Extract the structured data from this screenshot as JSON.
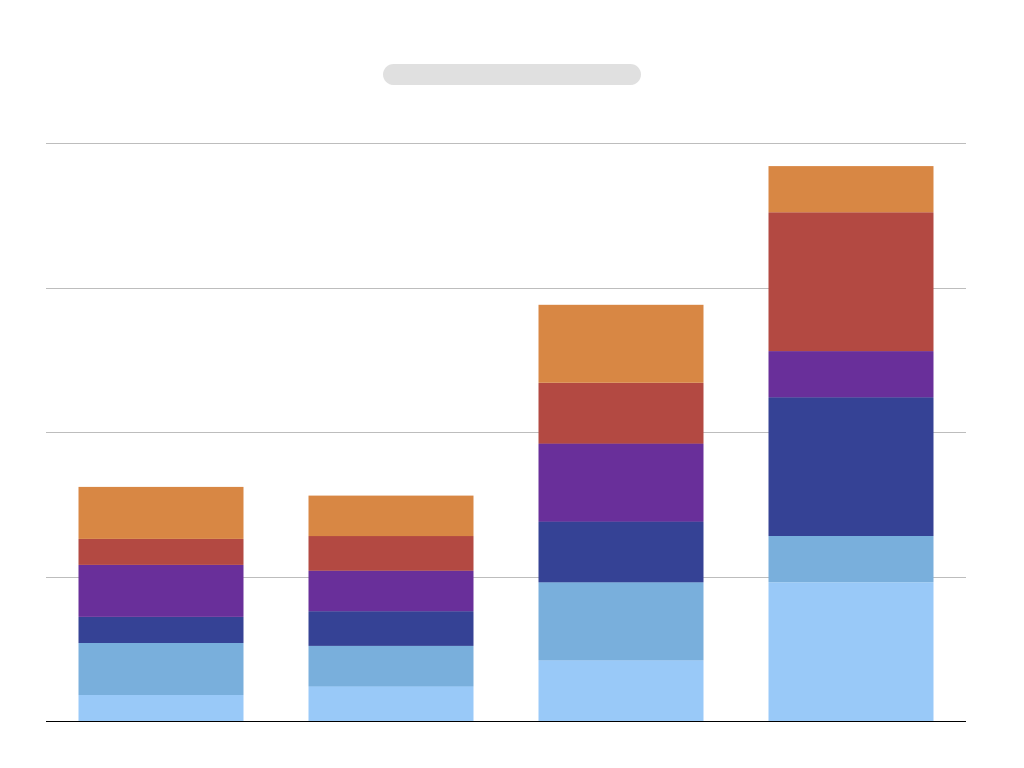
{
  "colors": {
    "background": "#ffffff",
    "gridline": "#bdbdbd",
    "axis": "#000000",
    "title_placeholder": "#e0e0e0"
  },
  "chart_data": {
    "type": "bar",
    "stacked": true,
    "title": "",
    "xlabel": "",
    "ylabel": "",
    "categories": [
      "",
      "",
      "",
      ""
    ],
    "ylim": [
      0,
      20
    ],
    "gridlines": [
      5,
      10,
      15,
      20
    ],
    "grid": true,
    "legend": "none",
    "series": [
      {
        "color": "#99c9f8",
        "values": [
          0.9,
          1.2,
          2.1,
          4.8
        ]
      },
      {
        "color": "#79afdc",
        "values": [
          1.8,
          1.4,
          2.7,
          1.6
        ]
      },
      {
        "color": "#354295",
        "values": [
          0.9,
          1.2,
          2.1,
          4.8
        ]
      },
      {
        "color": "#692f9a",
        "values": [
          1.8,
          1.4,
          2.7,
          1.6
        ]
      },
      {
        "color": "#b34942",
        "values": [
          0.9,
          1.2,
          2.1,
          4.8
        ]
      },
      {
        "color": "#d88744",
        "values": [
          1.8,
          1.4,
          2.7,
          1.6
        ]
      }
    ]
  }
}
